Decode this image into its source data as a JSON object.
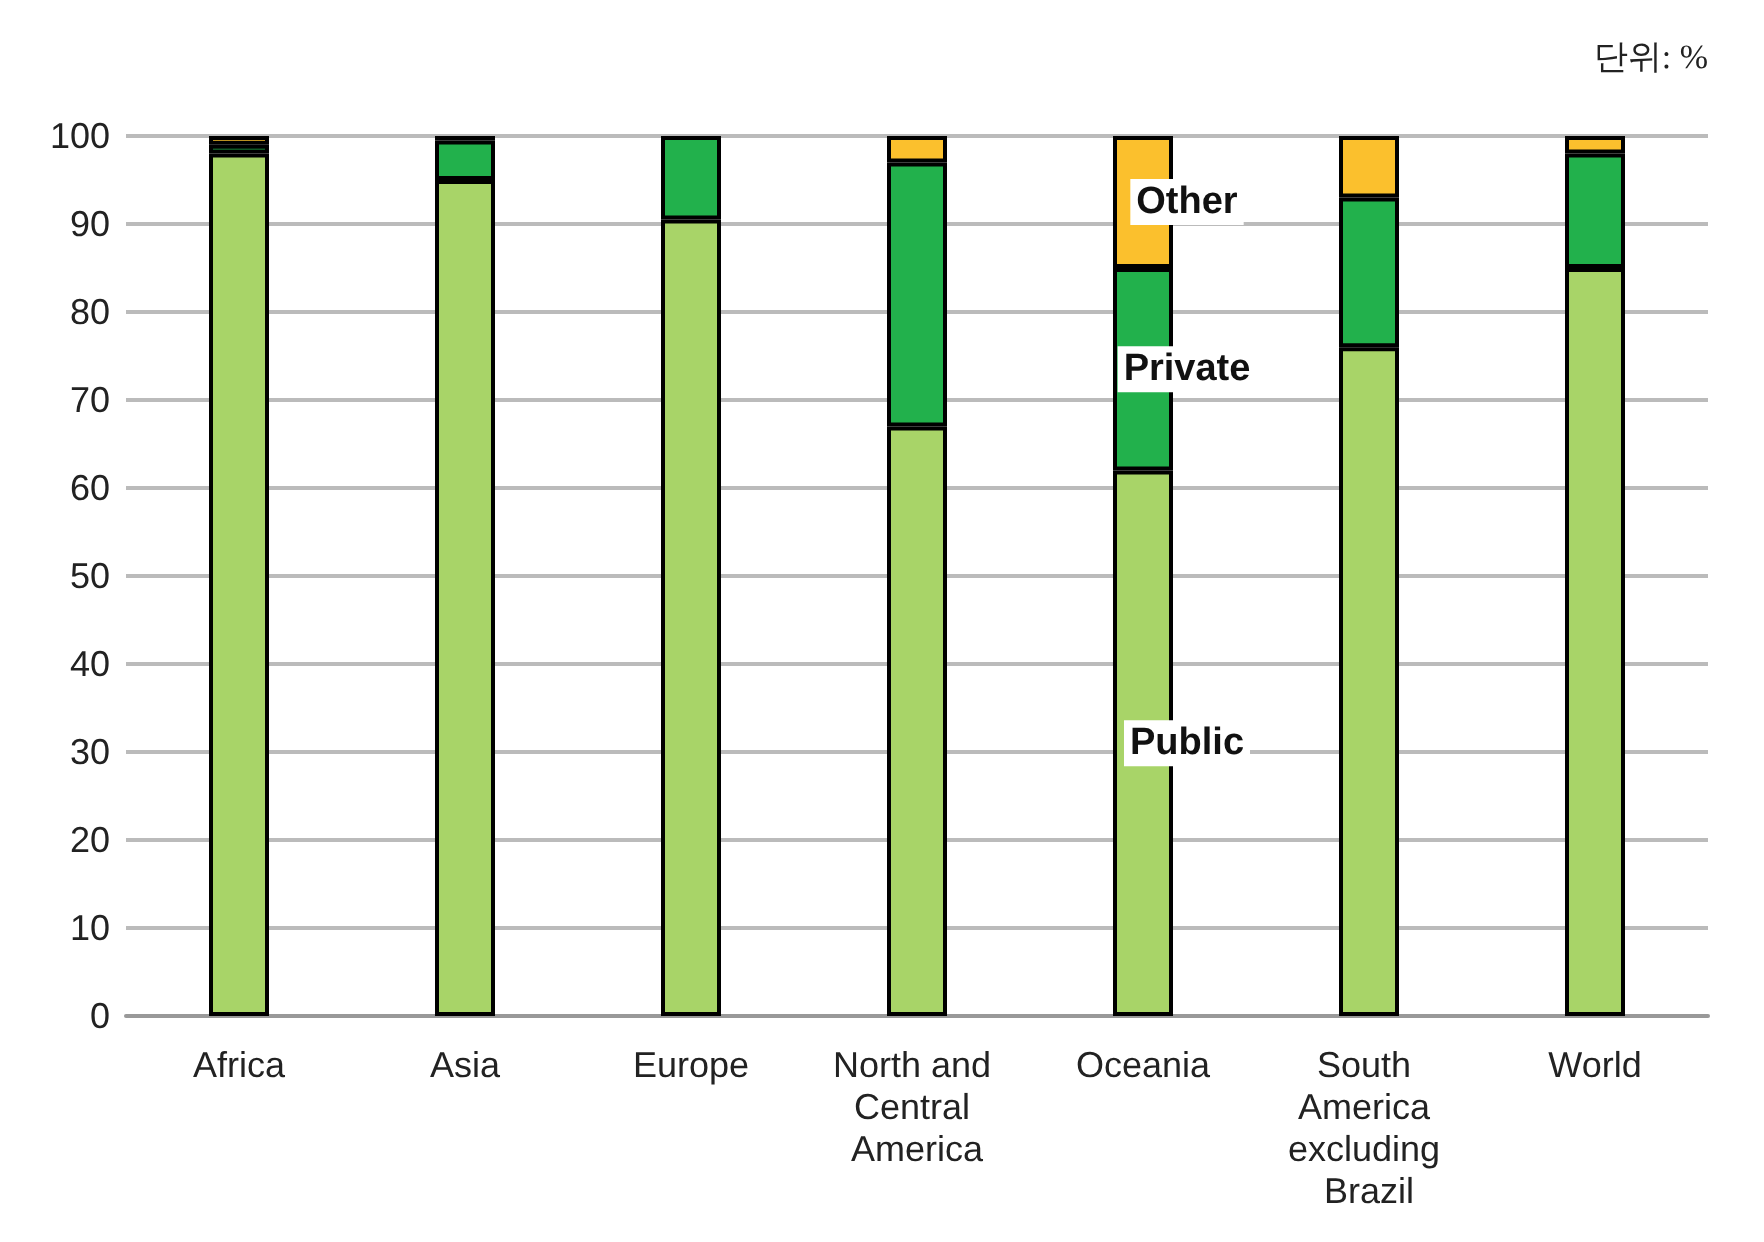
{
  "chart_data": {
    "type": "bar",
    "stacked": true,
    "categories": [
      "Africa",
      "Asia",
      "Europe",
      "North and Central America",
      "Oceania",
      "South America excluding Brazil",
      "World"
    ],
    "series": [
      {
        "name": "Public",
        "color": "#a8d468",
        "values": [
          98,
          95,
          90.5,
          67,
          62,
          76,
          85
        ]
      },
      {
        "name": "Private",
        "color": "#22b14c",
        "values": [
          1,
          4.5,
          9.5,
          30,
          23,
          17,
          13
        ]
      },
      {
        "name": "Other",
        "color": "#fbc02d",
        "values": [
          1,
          0.5,
          0,
          3,
          15,
          7,
          2
        ]
      }
    ],
    "ylim": [
      0,
      100
    ],
    "yticks": [
      0,
      10,
      20,
      30,
      40,
      50,
      60,
      70,
      80,
      90,
      100
    ],
    "grid": "y",
    "legend": false,
    "annotations": [
      "단위: %"
    ]
  }
}
